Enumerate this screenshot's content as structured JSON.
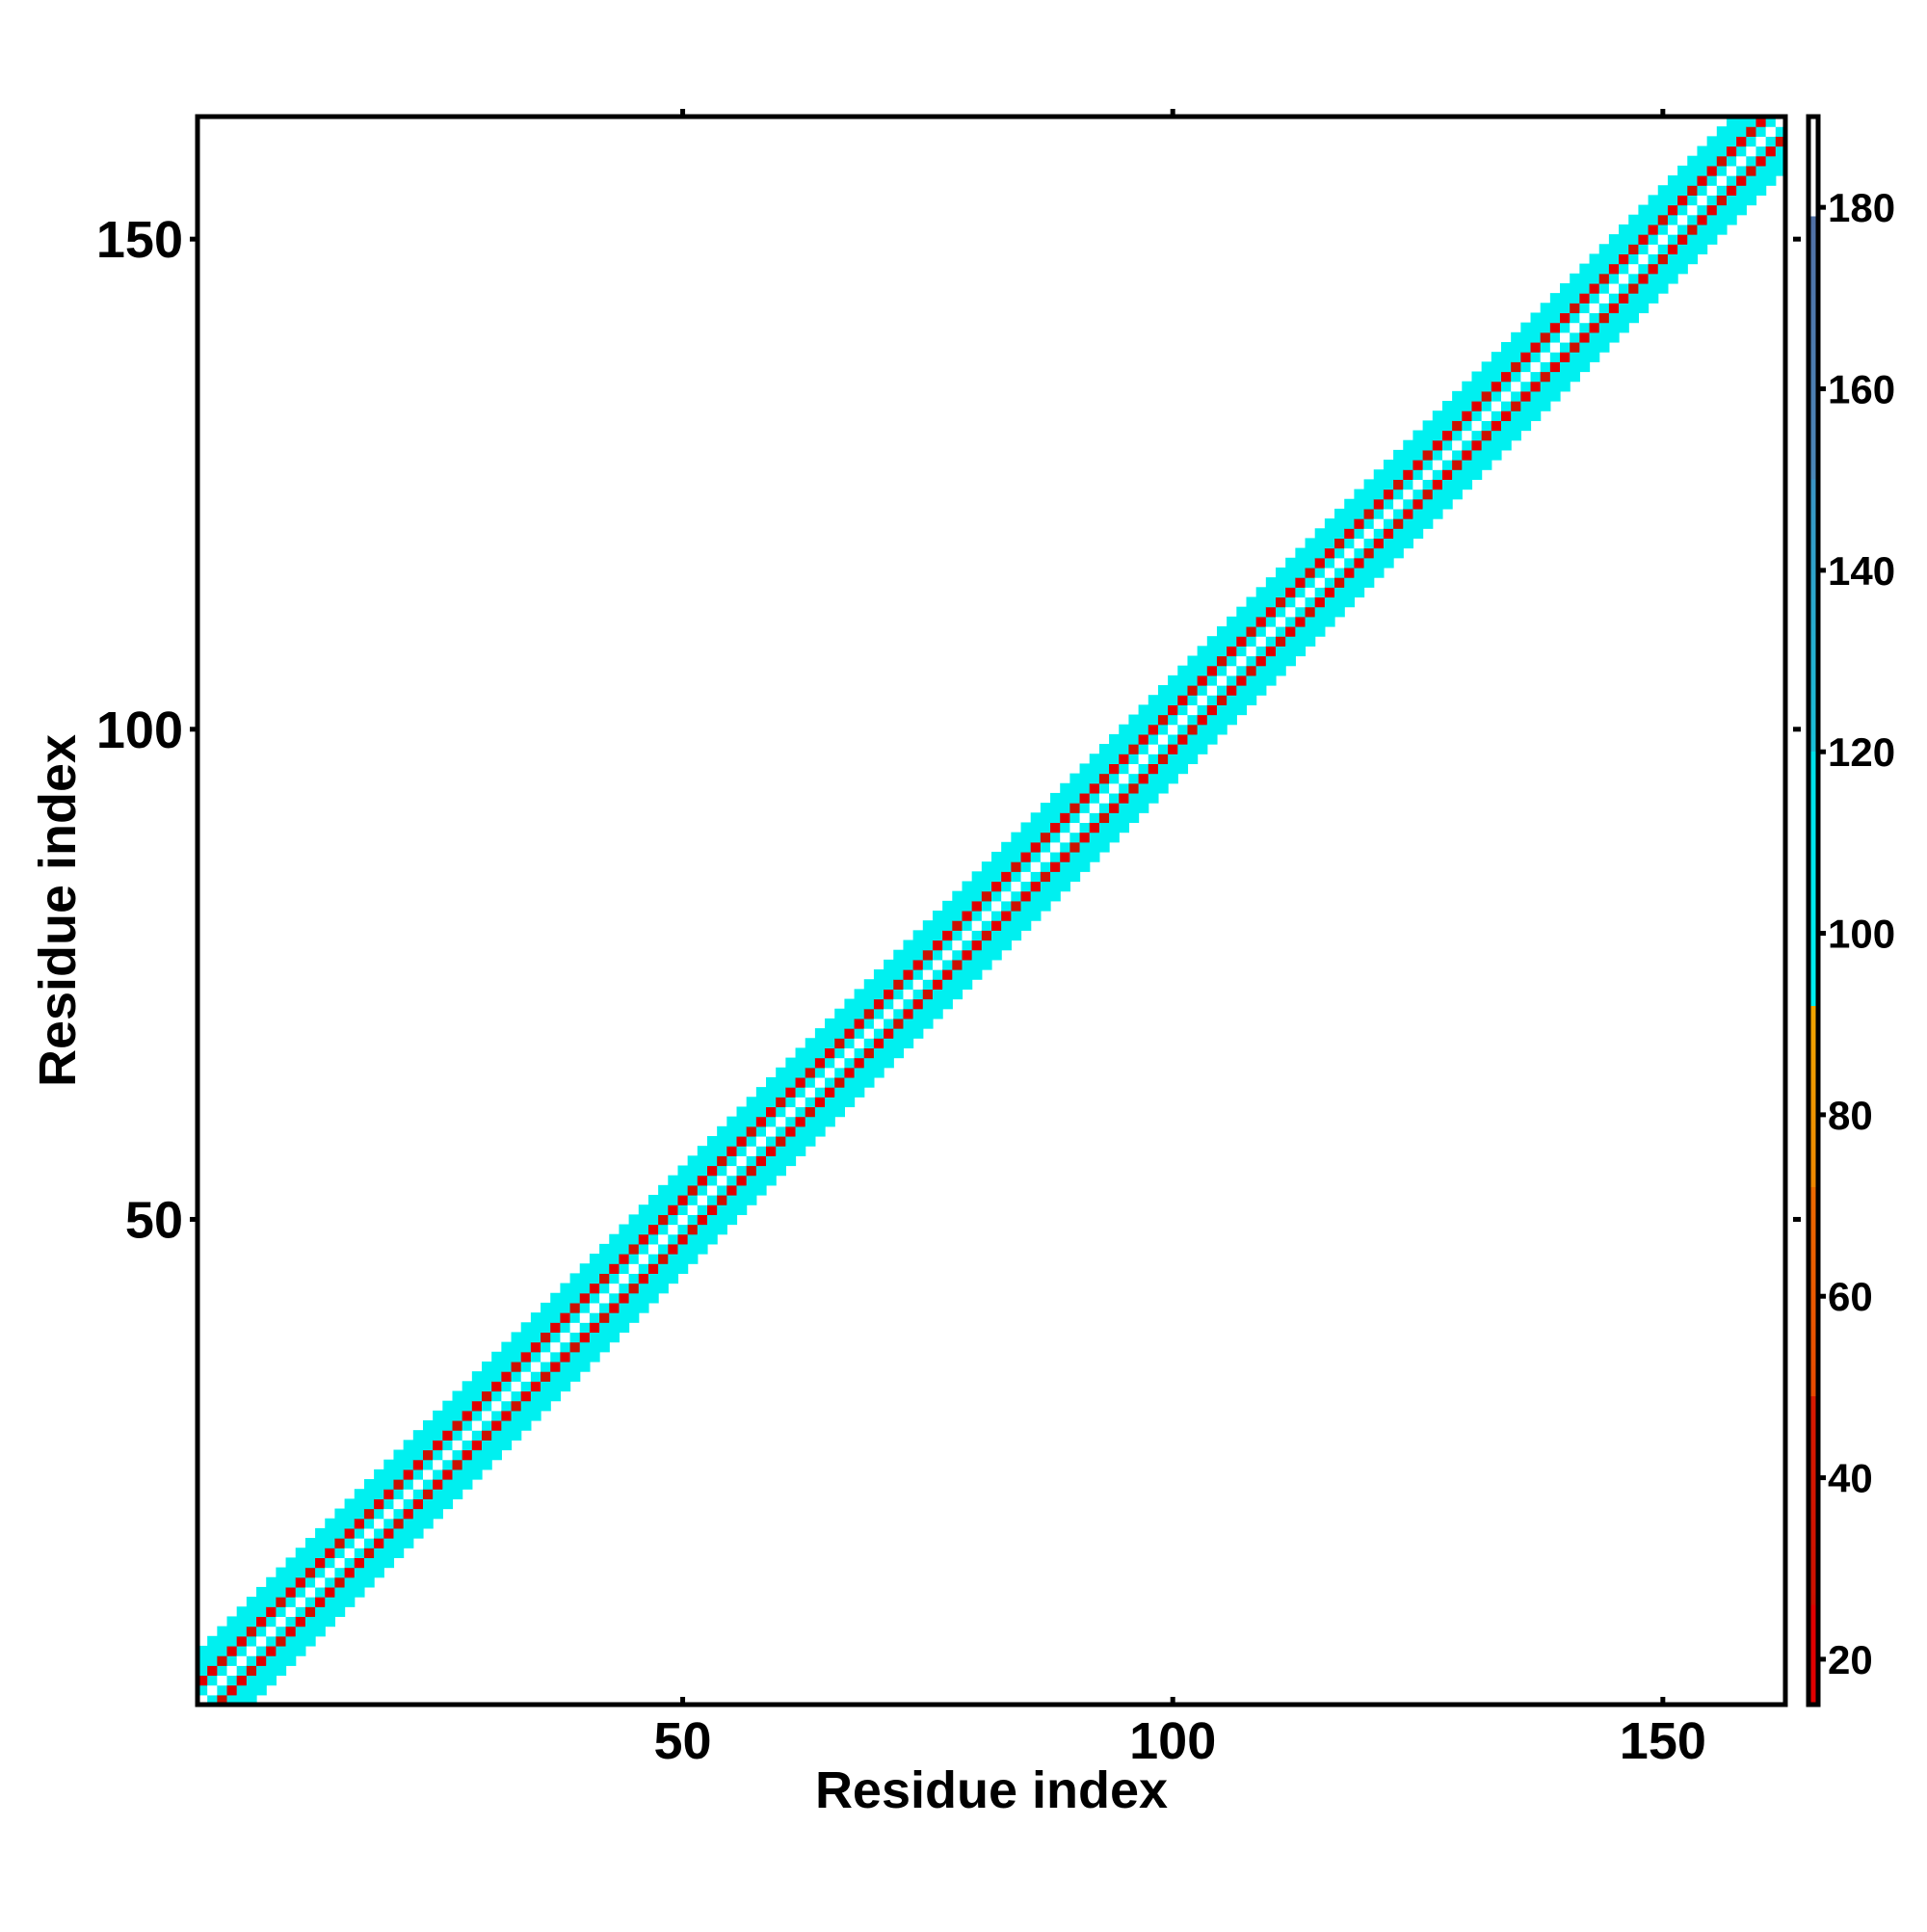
{
  "chart_data": {
    "type": "heatmap",
    "title": "",
    "xlabel": "Residue index",
    "ylabel": "Residue index",
    "xlim": [
      1,
      162
    ],
    "ylim": [
      1,
      162
    ],
    "x_ticks": [
      50,
      100,
      150
    ],
    "y_ticks": [
      50,
      100,
      150
    ],
    "band": {
      "description_of_values": "residue-pair values along the diagonal",
      "center_offset_values": {
        "0": 180,
        "1": 100,
        "2": 20,
        "3": 180,
        "4": 100,
        "5": 30
      },
      "edge_value": 110
    },
    "colorbar": {
      "range": [
        15,
        190
      ],
      "ticks": [
        20,
        40,
        60,
        80,
        100,
        120,
        140,
        160,
        180
      ],
      "stops": [
        {
          "value": 15,
          "color": "#e00000"
        },
        {
          "value": 26,
          "color": "#e00000"
        },
        {
          "value": 26,
          "color": "#cc1100"
        },
        {
          "value": 49,
          "color": "#d81a00"
        },
        {
          "value": 49,
          "color": "#e84a00"
        },
        {
          "value": 72,
          "color": "#ec6a00"
        },
        {
          "value": 72,
          "color": "#ee8800"
        },
        {
          "value": 92,
          "color": "#f0a500"
        },
        {
          "value": 92,
          "color": "#00f0f0"
        },
        {
          "value": 120,
          "color": "#00e0ea"
        },
        {
          "value": 120,
          "color": "#18c0d8"
        },
        {
          "value": 150,
          "color": "#3a94c4"
        },
        {
          "value": 150,
          "color": "#4a86b8"
        },
        {
          "value": 179,
          "color": "#5070a6"
        },
        {
          "value": 179,
          "color": "#ffffff"
        },
        {
          "value": 190,
          "color": "#ffffff"
        }
      ]
    }
  }
}
